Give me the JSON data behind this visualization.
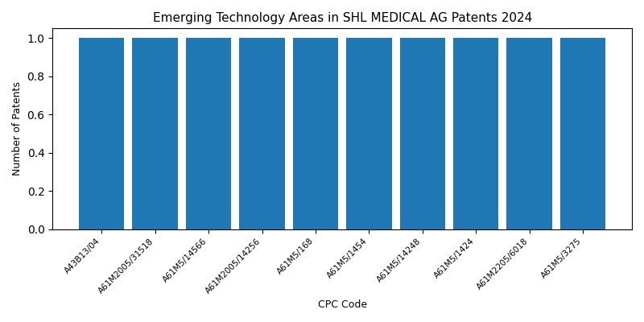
{
  "title": "Emerging Technology Areas in SHL MEDICAL AG Patents 2024",
  "xlabel": "CPC Code",
  "ylabel": "Number of Patents",
  "categories": [
    "A43B13/04",
    "A61M2005/31518",
    "A61M5/14566",
    "A61M2005/14256",
    "A61M5/168",
    "A61M5/1454",
    "A61M5/14248",
    "A61M5/1424",
    "A61M2205/6018",
    "A61M5/3275"
  ],
  "values": [
    1,
    1,
    1,
    1,
    1,
    1,
    1,
    1,
    1,
    1
  ],
  "bar_color": "#1f77b4",
  "bar_width": 0.85,
  "ylim": [
    0,
    1.05
  ],
  "yticks": [
    0.0,
    0.2,
    0.4,
    0.6,
    0.8,
    1.0
  ],
  "figsize": [
    8.0,
    4.0
  ],
  "dpi": 100,
  "title_fontsize": 11,
  "label_fontsize": 9,
  "tick_fontsize": 7.5
}
